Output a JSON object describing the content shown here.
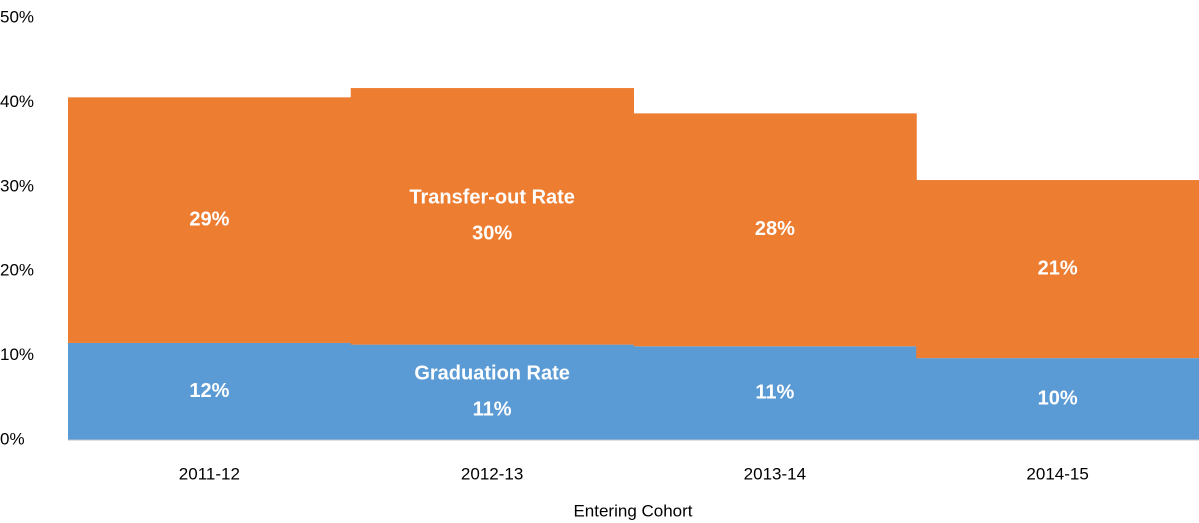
{
  "chart_data": {
    "type": "bar",
    "stacked": true,
    "x_label": "Entering Cohort",
    "categories": [
      "2011-12",
      "2012-13",
      "2013-14",
      "2014-15"
    ],
    "series": [
      {
        "name": "Graduation Rate",
        "color": "#5b9bd5",
        "values": [
          11.5,
          11.3,
          11.1,
          9.7
        ],
        "value_labels": [
          "12%",
          "11%",
          "11%",
          "10%"
        ]
      },
      {
        "name": "Transfer-out Rate",
        "color": "#ed7d31",
        "values": [
          29.1,
          30.4,
          27.6,
          21.1
        ],
        "value_labels": [
          "29%",
          "30%",
          "28%",
          "21%"
        ]
      }
    ],
    "ylim": [
      0,
      50
    ],
    "yticks": [
      {
        "value": 0,
        "label": "0%"
      },
      {
        "value": 10,
        "label": "10%"
      },
      {
        "value": 20,
        "label": "20%"
      },
      {
        "value": 30,
        "label": "30%"
      },
      {
        "value": 40,
        "label": "40%"
      },
      {
        "value": 50,
        "label": "50%"
      }
    ],
    "grid": false
  }
}
